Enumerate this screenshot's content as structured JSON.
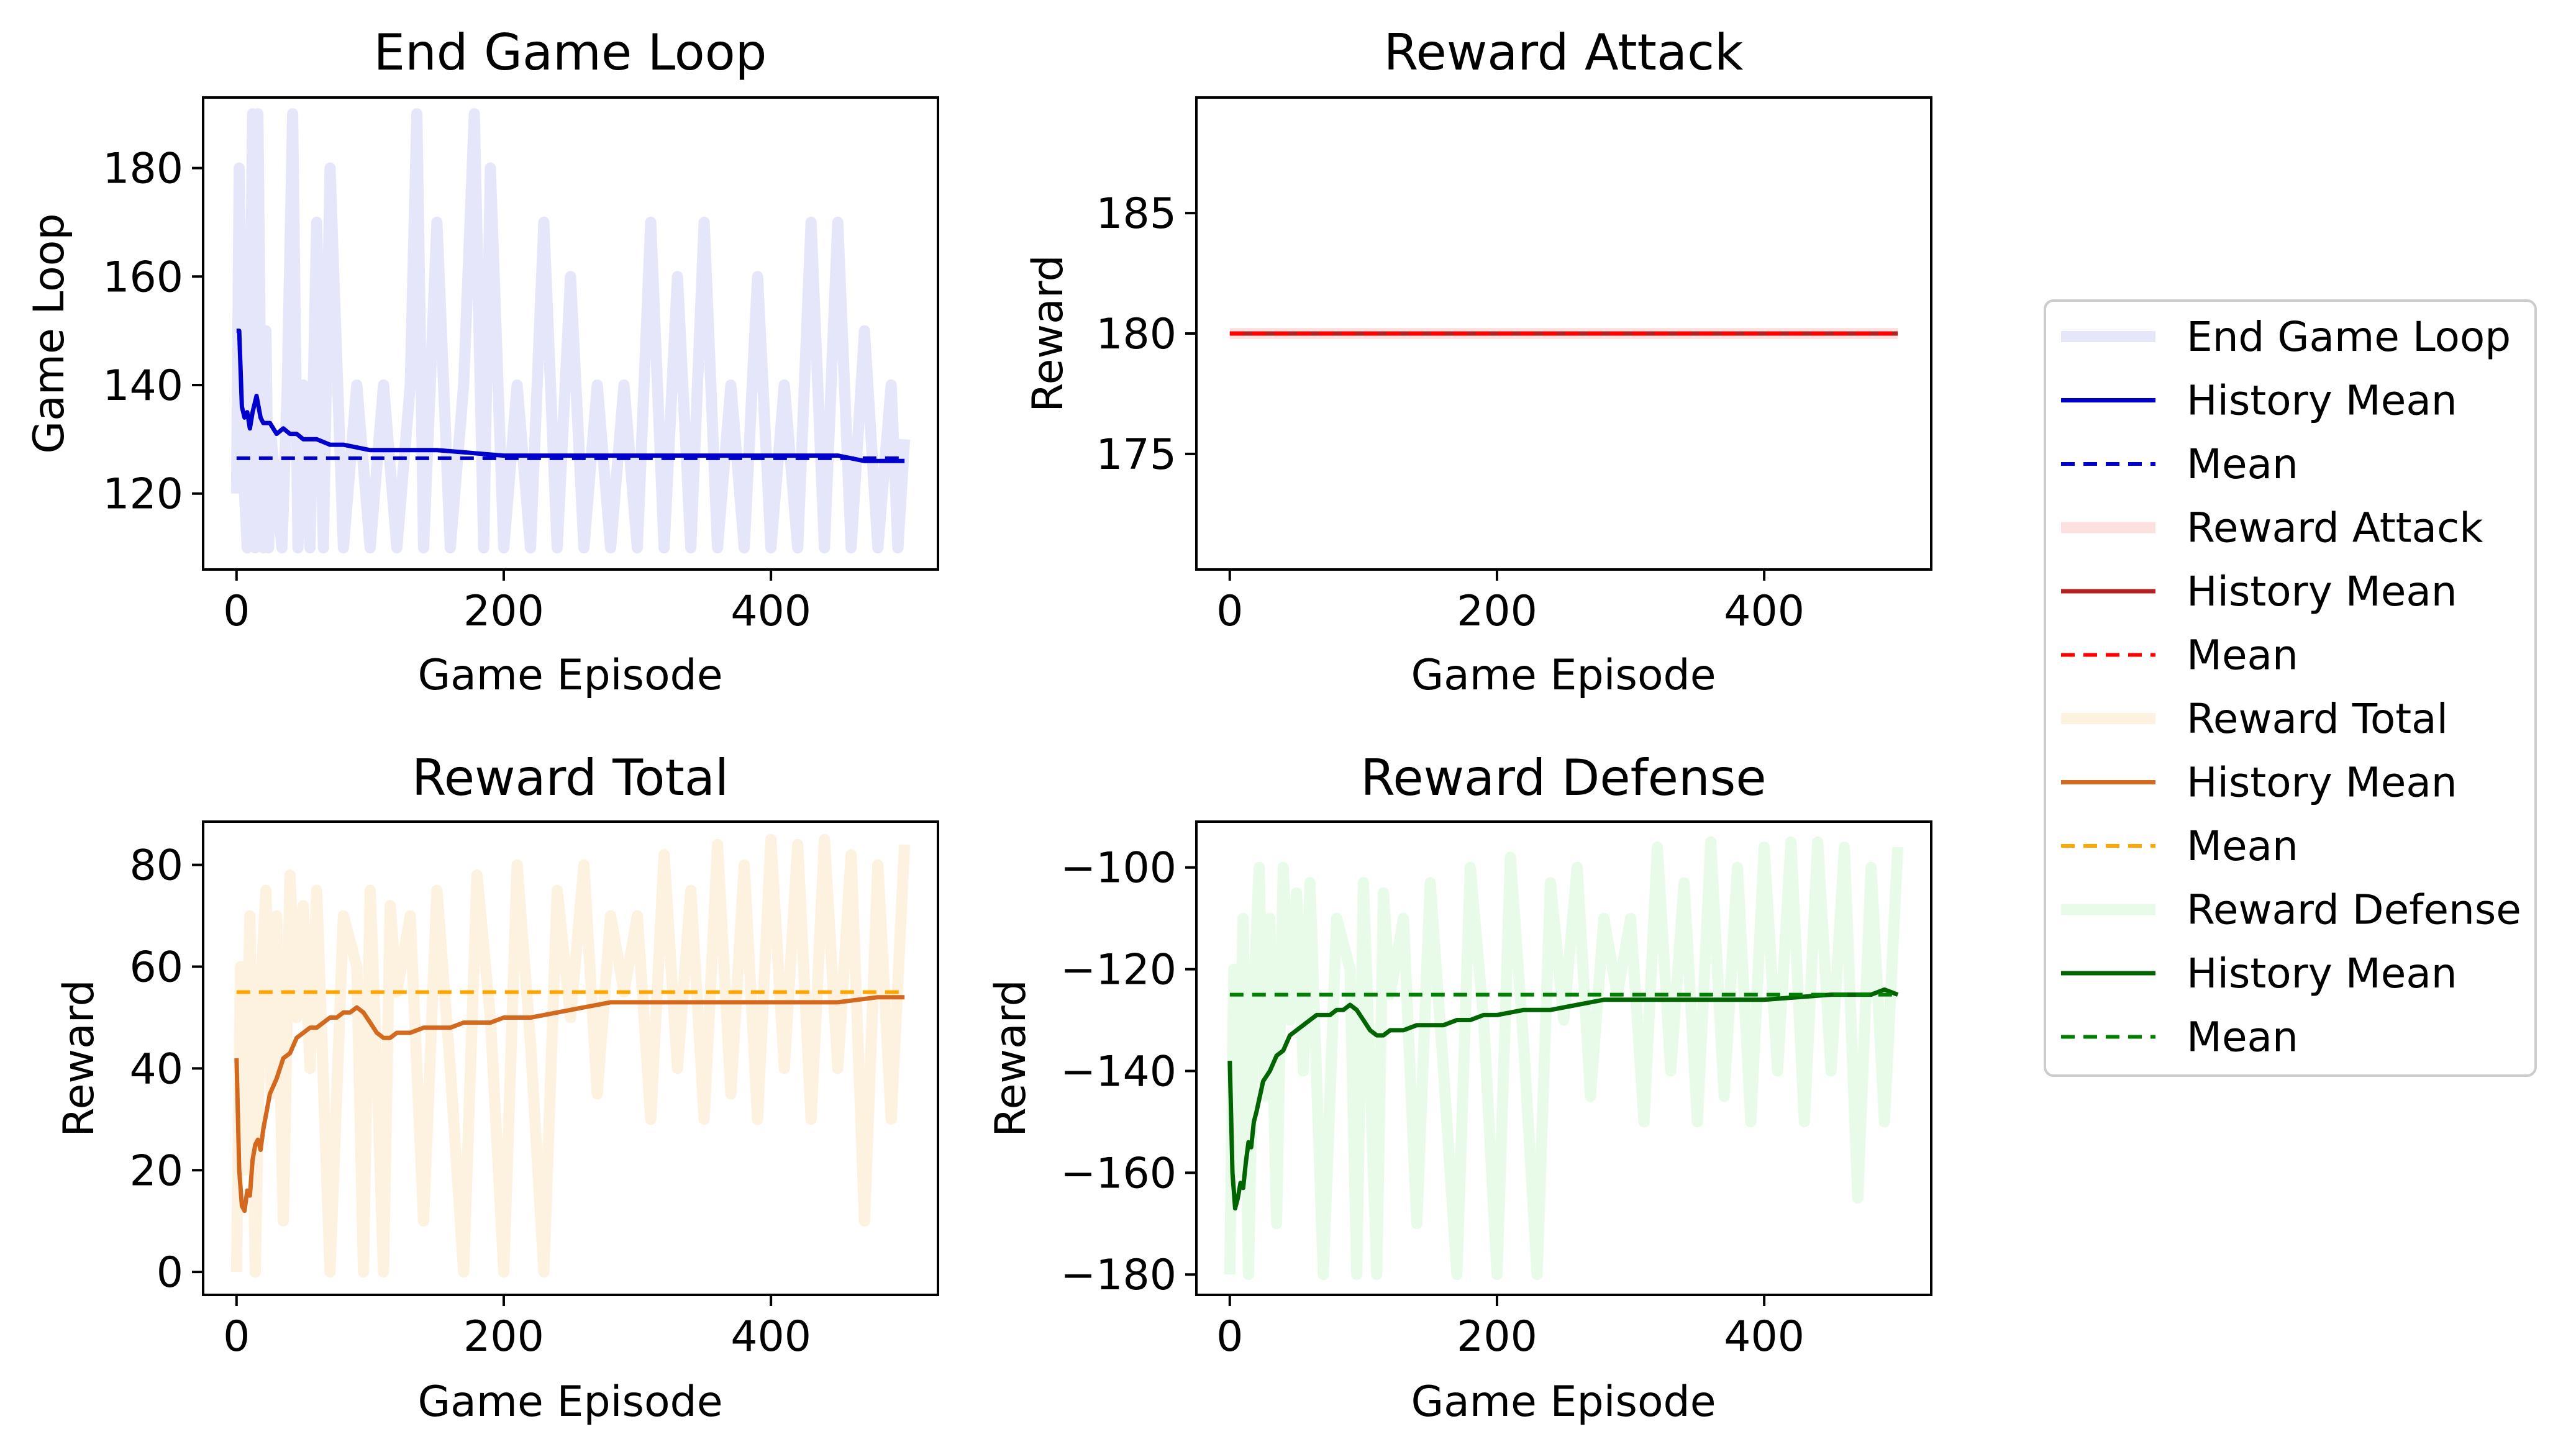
{
  "chart_data": [
    {
      "type": "line",
      "title": "End Game Loop",
      "xlabel": "Game Episode",
      "ylabel": "Game Loop",
      "xlim": [
        -25,
        525
      ],
      "ylim": [
        106,
        193
      ],
      "xticks": [
        0,
        200,
        400
      ],
      "yticks": [
        120,
        140,
        160,
        180
      ],
      "series": [
        {
          "name": "End Game Loop",
          "style": "raw",
          "color": "#e6e6fa",
          "x": [
            0,
            2,
            4,
            6,
            8,
            10,
            12,
            14,
            16,
            18,
            20,
            22,
            24,
            26,
            30,
            34,
            38,
            42,
            46,
            50,
            55,
            60,
            65,
            70,
            80,
            90,
            100,
            110,
            120,
            130,
            135,
            140,
            150,
            160,
            170,
            178,
            185,
            190,
            200,
            210,
            220,
            230,
            240,
            250,
            260,
            270,
            280,
            290,
            300,
            310,
            320,
            330,
            340,
            350,
            360,
            370,
            380,
            390,
            400,
            410,
            420,
            430,
            440,
            450,
            460,
            470,
            480,
            490,
            495,
            500
          ],
          "y": [
            120,
            180,
            150,
            120,
            110,
            140,
            190,
            110,
            190,
            140,
            110,
            150,
            110,
            130,
            120,
            110,
            140,
            190,
            110,
            140,
            110,
            170,
            110,
            180,
            110,
            140,
            110,
            140,
            110,
            140,
            190,
            110,
            170,
            110,
            140,
            190,
            110,
            180,
            110,
            140,
            110,
            170,
            110,
            160,
            110,
            140,
            110,
            140,
            110,
            170,
            110,
            160,
            110,
            170,
            110,
            140,
            110,
            160,
            110,
            140,
            110,
            170,
            110,
            170,
            110,
            150,
            110,
            140,
            110,
            130
          ]
        },
        {
          "name": "History Mean",
          "style": "history",
          "color": "#0000cd",
          "x": [
            0,
            2,
            4,
            6,
            8,
            10,
            12,
            15,
            18,
            20,
            25,
            30,
            35,
            40,
            45,
            50,
            60,
            70,
            80,
            100,
            120,
            150,
            200,
            250,
            300,
            350,
            400,
            450,
            470,
            500
          ],
          "y": [
            150,
            150,
            136,
            134,
            135,
            132,
            135,
            138,
            134,
            133,
            133,
            131,
            132,
            131,
            131,
            130,
            130,
            129,
            129,
            128,
            128,
            128,
            127,
            127,
            127,
            127,
            127,
            127,
            126,
            126
          ]
        },
        {
          "name": "Mean",
          "style": "mean",
          "color": "#0000cd",
          "x": [
            0,
            500
          ],
          "y": [
            126.5,
            126.5
          ]
        }
      ]
    },
    {
      "type": "line",
      "title": "Reward Attack",
      "xlabel": "Game Episode",
      "ylabel": "Reward",
      "xlim": [
        -25,
        525
      ],
      "ylim": [
        170.2,
        189.8
      ],
      "xticks": [
        0,
        200,
        400
      ],
      "yticks": [
        175,
        180,
        185
      ],
      "series": [
        {
          "name": "Reward Attack",
          "style": "raw",
          "color": "#fde0e0",
          "x": [
            0,
            500
          ],
          "y": [
            180,
            180
          ]
        },
        {
          "name": "History Mean",
          "style": "history",
          "color": "#b22222",
          "x": [
            0,
            500
          ],
          "y": [
            180,
            180
          ]
        },
        {
          "name": "Mean",
          "style": "mean",
          "color": "#ff0000",
          "x": [
            0,
            500
          ],
          "y": [
            180,
            180
          ]
        }
      ]
    },
    {
      "type": "line",
      "title": "Reward Total",
      "xlabel": "Game Episode",
      "ylabel": "Reward",
      "xlim": [
        -25,
        525
      ],
      "ylim": [
        -4.5,
        88.5
      ],
      "xticks": [
        0,
        200,
        400
      ],
      "yticks": [
        0,
        20,
        40,
        60,
        80
      ],
      "series": [
        {
          "name": "Reward Total",
          "style": "raw",
          "color": "#fdf1e0",
          "x": [
            0,
            3,
            6,
            10,
            14,
            18,
            22,
            26,
            30,
            35,
            40,
            45,
            50,
            55,
            60,
            70,
            80,
            90,
            95,
            100,
            105,
            110,
            115,
            120,
            130,
            140,
            150,
            160,
            170,
            180,
            190,
            200,
            210,
            220,
            230,
            240,
            250,
            260,
            270,
            280,
            290,
            300,
            310,
            320,
            330,
            340,
            350,
            360,
            370,
            380,
            390,
            400,
            410,
            420,
            430,
            440,
            450,
            460,
            470,
            480,
            490,
            500
          ],
          "y": [
            0,
            60,
            20,
            70,
            0,
            55,
            75,
            35,
            70,
            10,
            78,
            50,
            72,
            40,
            75,
            0,
            70,
            60,
            0,
            75,
            40,
            0,
            72,
            55,
            70,
            10,
            75,
            40,
            0,
            78,
            50,
            0,
            80,
            45,
            0,
            75,
            50,
            80,
            35,
            70,
            55,
            70,
            30,
            82,
            40,
            75,
            30,
            84,
            35,
            80,
            30,
            85,
            40,
            84,
            30,
            85,
            40,
            82,
            10,
            80,
            30,
            84
          ]
        },
        {
          "name": "History Mean",
          "style": "history",
          "color": "#d2691e",
          "x": [
            0,
            2,
            4,
            6,
            8,
            10,
            12,
            14,
            16,
            18,
            20,
            25,
            30,
            35,
            40,
            45,
            50,
            55,
            60,
            65,
            70,
            75,
            80,
            85,
            90,
            95,
            100,
            105,
            110,
            115,
            120,
            125,
            130,
            140,
            150,
            160,
            170,
            180,
            190,
            200,
            220,
            240,
            260,
            280,
            300,
            350,
            400,
            450,
            480,
            490,
            500
          ],
          "y": [
            42,
            20,
            13,
            12,
            16,
            15,
            22,
            25,
            26,
            24,
            28,
            35,
            38,
            42,
            43,
            46,
            47,
            48,
            48,
            49,
            50,
            50,
            51,
            51,
            52,
            51,
            49,
            47,
            46,
            46,
            47,
            47,
            47,
            48,
            48,
            48,
            49,
            49,
            49,
            50,
            50,
            51,
            52,
            53,
            53,
            53,
            53,
            53,
            54,
            54,
            54
          ]
        },
        {
          "name": "Mean",
          "style": "mean",
          "color": "#ffa500",
          "x": [
            0,
            500
          ],
          "y": [
            55,
            55
          ]
        }
      ]
    },
    {
      "type": "line",
      "title": "Reward Defense",
      "xlabel": "Game Episode",
      "ylabel": "Reward",
      "xlim": [
        -25,
        525
      ],
      "ylim": [
        -184,
        -91
      ],
      "xticks": [
        0,
        200,
        400
      ],
      "yticks": [
        -180,
        -160,
        -140,
        -120,
        -100
      ],
      "series": [
        {
          "name": "Reward Defense",
          "style": "raw",
          "color": "#e8fbe8",
          "x": [
            0,
            3,
            6,
            10,
            14,
            18,
            22,
            26,
            30,
            35,
            40,
            45,
            50,
            55,
            60,
            70,
            80,
            90,
            95,
            100,
            105,
            110,
            115,
            120,
            130,
            140,
            150,
            160,
            170,
            180,
            190,
            200,
            210,
            220,
            230,
            240,
            250,
            260,
            270,
            280,
            290,
            300,
            310,
            320,
            330,
            340,
            350,
            360,
            370,
            380,
            390,
            400,
            410,
            420,
            430,
            440,
            450,
            460,
            470,
            480,
            490,
            500
          ],
          "y": [
            -180,
            -120,
            -160,
            -110,
            -180,
            -125,
            -100,
            -145,
            -110,
            -170,
            -100,
            -130,
            -105,
            -140,
            -103,
            -180,
            -110,
            -120,
            -180,
            -103,
            -140,
            -180,
            -105,
            -125,
            -110,
            -170,
            -103,
            -140,
            -180,
            -100,
            -130,
            -180,
            -98,
            -135,
            -180,
            -103,
            -130,
            -100,
            -145,
            -110,
            -125,
            -110,
            -150,
            -96,
            -140,
            -103,
            -150,
            -95,
            -145,
            -100,
            -150,
            -96,
            -140,
            -95,
            -150,
            -95,
            -140,
            -96,
            -165,
            -100,
            -150,
            -96
          ]
        },
        {
          "name": "History Mean",
          "style": "history",
          "color": "#006400",
          "x": [
            0,
            2,
            4,
            6,
            8,
            10,
            12,
            14,
            16,
            18,
            20,
            25,
            30,
            35,
            40,
            45,
            50,
            55,
            60,
            65,
            70,
            75,
            80,
            85,
            90,
            95,
            100,
            105,
            110,
            115,
            120,
            125,
            130,
            140,
            150,
            160,
            170,
            180,
            190,
            200,
            220,
            240,
            260,
            280,
            300,
            350,
            400,
            450,
            480,
            490,
            500
          ],
          "y": [
            -138,
            -160,
            -167,
            -165,
            -162,
            -163,
            -158,
            -154,
            -155,
            -150,
            -148,
            -142,
            -140,
            -137,
            -136,
            -133,
            -132,
            -131,
            -130,
            -129,
            -129,
            -129,
            -128,
            -128,
            -127,
            -128,
            -130,
            -132,
            -133,
            -133,
            -132,
            -132,
            -132,
            -131,
            -131,
            -131,
            -130,
            -130,
            -129,
            -129,
            -128,
            -128,
            -127,
            -126,
            -126,
            -126,
            -126,
            -125,
            -125,
            -124,
            -125
          ]
        },
        {
          "name": "Mean",
          "style": "mean",
          "color": "#008000",
          "x": [
            0,
            500
          ],
          "y": [
            -125,
            -125
          ]
        }
      ]
    }
  ],
  "legend": {
    "placement": "right",
    "entries": [
      {
        "label": "End Game Loop",
        "color": "#e6e6fa",
        "style": "raw"
      },
      {
        "label": "History Mean",
        "color": "#0000cd",
        "style": "history"
      },
      {
        "label": "Mean",
        "color": "#0000cd",
        "style": "mean"
      },
      {
        "label": "Reward Attack",
        "color": "#fde0e0",
        "style": "raw"
      },
      {
        "label": "History Mean",
        "color": "#b22222",
        "style": "history"
      },
      {
        "label": "Mean",
        "color": "#ff0000",
        "style": "mean"
      },
      {
        "label": "Reward Total",
        "color": "#fdf1e0",
        "style": "raw"
      },
      {
        "label": "History Mean",
        "color": "#d2691e",
        "style": "history"
      },
      {
        "label": "Mean",
        "color": "#ffa500",
        "style": "mean"
      },
      {
        "label": "Reward Defense",
        "color": "#e8fbe8",
        "style": "raw"
      },
      {
        "label": "History Mean",
        "color": "#006400",
        "style": "history"
      },
      {
        "label": "Mean",
        "color": "#008000",
        "style": "mean"
      }
    ]
  }
}
